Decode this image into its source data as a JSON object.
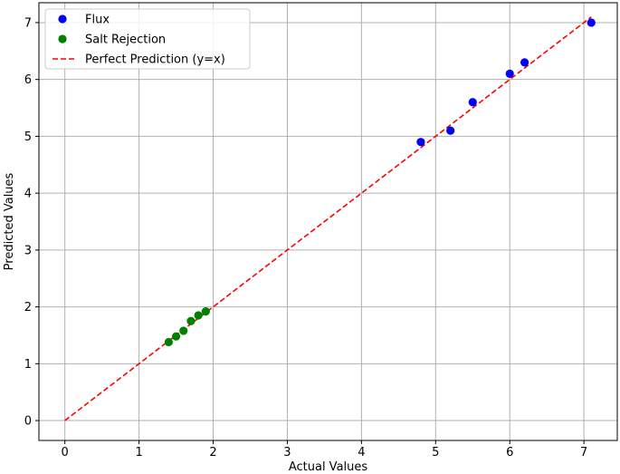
{
  "chart_data": {
    "type": "scatter",
    "title": "",
    "xlabel": "Actual Values",
    "ylabel": "Predicted Values",
    "xlim": [
      -0.35,
      7.45
    ],
    "ylim": [
      -0.35,
      7.35
    ],
    "xticks": [
      0,
      1,
      2,
      3,
      4,
      5,
      6,
      7
    ],
    "yticks": [
      0,
      1,
      2,
      3,
      4,
      5,
      6,
      7
    ],
    "grid": true,
    "legend_position": "top-left",
    "series": [
      {
        "name": "Flux",
        "kind": "scatter",
        "color": "#0000ff",
        "points": [
          {
            "x": 4.8,
            "y": 4.9
          },
          {
            "x": 5.2,
            "y": 5.1
          },
          {
            "x": 5.5,
            "y": 5.6
          },
          {
            "x": 6.0,
            "y": 6.1
          },
          {
            "x": 6.2,
            "y": 6.3
          },
          {
            "x": 7.1,
            "y": 7.0
          }
        ]
      },
      {
        "name": "Salt Rejection",
        "kind": "scatter",
        "color": "#008000",
        "points": [
          {
            "x": 1.4,
            "y": 1.38
          },
          {
            "x": 1.5,
            "y": 1.48
          },
          {
            "x": 1.6,
            "y": 1.58
          },
          {
            "x": 1.7,
            "y": 1.75
          },
          {
            "x": 1.8,
            "y": 1.85
          },
          {
            "x": 1.9,
            "y": 1.92
          }
        ]
      },
      {
        "name": "Perfect Prediction (y=x)",
        "kind": "line",
        "color": "#ff0000",
        "dash": "dashed",
        "points": [
          {
            "x": 0,
            "y": 0
          },
          {
            "x": 7.1,
            "y": 7.1
          }
        ]
      }
    ]
  }
}
